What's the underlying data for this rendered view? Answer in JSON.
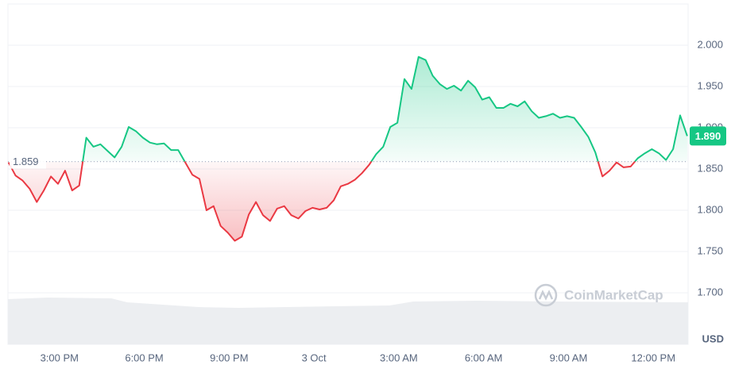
{
  "chart_data": {
    "type": "line",
    "x": [
      13.2,
      13.45,
      13.7,
      13.95,
      14.2,
      14.45,
      14.7,
      14.95,
      15.2,
      15.45,
      15.7,
      15.95,
      16.2,
      16.45,
      16.7,
      16.95,
      17.2,
      17.45,
      17.7,
      17.95,
      18.2,
      18.45,
      18.7,
      18.95,
      19.2,
      19.45,
      19.7,
      19.95,
      20.2,
      20.45,
      20.7,
      20.95,
      21.2,
      21.45,
      21.7,
      21.95,
      22.2,
      22.45,
      22.7,
      22.95,
      23.2,
      23.45,
      23.7,
      23.95,
      24.2,
      24.45,
      24.7,
      24.95,
      25.2,
      25.45,
      25.7,
      25.95,
      26.2,
      26.45,
      26.7,
      26.95,
      27.2,
      27.45,
      27.7,
      27.95,
      28.2,
      28.45,
      28.7,
      28.95,
      29.2,
      29.45,
      29.7,
      29.95,
      30.2,
      30.45,
      30.7,
      30.95,
      31.2,
      31.45,
      31.7,
      31.95,
      32.2,
      32.45,
      32.7,
      32.95,
      33.2,
      33.45,
      33.7,
      33.95,
      34.2,
      34.45,
      34.7,
      34.95,
      35.2,
      35.45,
      35.7,
      35.95,
      36.2,
      36.45,
      36.7,
      36.95,
      37.2
    ],
    "values": [
      1.858,
      1.842,
      1.836,
      1.826,
      1.81,
      1.824,
      1.841,
      1.832,
      1.848,
      1.824,
      1.83,
      1.888,
      1.877,
      1.88,
      1.872,
      1.864,
      1.877,
      1.901,
      1.896,
      1.888,
      1.882,
      1.88,
      1.881,
      1.873,
      1.873,
      1.858,
      1.843,
      1.838,
      1.8,
      1.805,
      1.781,
      1.773,
      1.763,
      1.768,
      1.795,
      1.81,
      1.794,
      1.787,
      1.802,
      1.805,
      1.794,
      1.79,
      1.799,
      1.803,
      1.801,
      1.803,
      1.812,
      1.829,
      1.832,
      1.837,
      1.845,
      1.855,
      1.868,
      1.877,
      1.901,
      1.906,
      1.959,
      1.947,
      1.986,
      1.982,
      1.963,
      1.953,
      1.947,
      1.951,
      1.945,
      1.957,
      1.949,
      1.934,
      1.937,
      1.924,
      1.924,
      1.929,
      1.926,
      1.932,
      1.92,
      1.912,
      1.914,
      1.917,
      1.912,
      1.914,
      1.912,
      1.901,
      1.889,
      1.87,
      1.841,
      1.848,
      1.858,
      1.852,
      1.853,
      1.863,
      1.869,
      1.874,
      1.869,
      1.861,
      1.874,
      1.915,
      1.89
    ],
    "baseline": 1.859,
    "last_price": {
      "value": 1.89,
      "label": "1.890"
    },
    "up_color": "#16c784",
    "down_color": "#ea3943",
    "xlim": [
      13.18,
      37.23
    ],
    "xticks": [
      {
        "value": 15,
        "label": "3:00 PM"
      },
      {
        "value": 18,
        "label": "6:00 PM"
      },
      {
        "value": 21,
        "label": "9:00 PM"
      },
      {
        "value": 24,
        "label": "3 Oct"
      },
      {
        "value": 27,
        "label": "3:00 AM"
      },
      {
        "value": 30,
        "label": "6:00 AM"
      },
      {
        "value": 33,
        "label": "9:00 AM"
      },
      {
        "value": 36,
        "label": "12:00 PM"
      }
    ],
    "ylim": [
      1.6375,
      2.05
    ],
    "yticks": [
      {
        "value": 1.7,
        "label": "1.700"
      },
      {
        "value": 1.75,
        "label": "1.750"
      },
      {
        "value": 1.8,
        "label": "1.800"
      },
      {
        "value": 1.85,
        "label": "1.850"
      },
      {
        "value": 1.9,
        "label": "1.900"
      },
      {
        "value": 1.95,
        "label": "1.950"
      },
      {
        "value": 2.0,
        "label": "2.000"
      }
    ],
    "y_unit": "USD",
    "watermark": "CoinMarketCap",
    "grid": true
  }
}
